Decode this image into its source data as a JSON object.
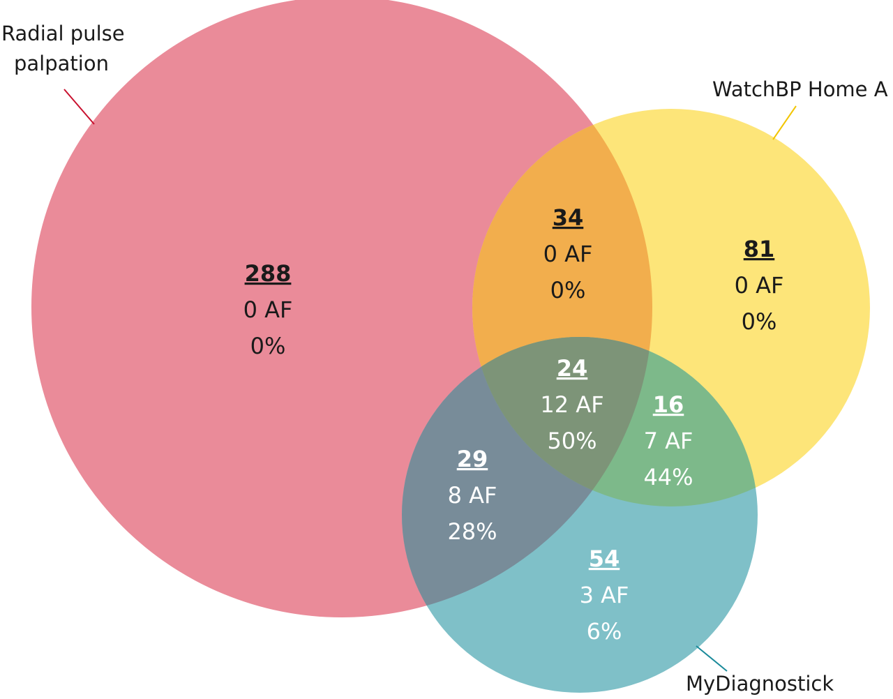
{
  "sets": [
    {
      "name": "Radial pulse palpation",
      "label_lines": [
        "Radial pulse",
        "palpation"
      ],
      "color": "#ea8b99",
      "leader_color": "#c8102e"
    },
    {
      "name": "WatchBP Home A",
      "label_lines": [
        "WatchBP Home A"
      ],
      "color": "#fde579",
      "leader_color": "#f2c500"
    },
    {
      "name": "MyDiagnostick",
      "label_lines": [
        "MyDiagnostick"
      ],
      "color": "#7fc0c8",
      "leader_color": "#1a8a9a"
    }
  ],
  "regions": [
    {
      "id": "radial-only",
      "sets": [
        "Radial pulse palpation"
      ],
      "count": "288",
      "af": "0 AF",
      "pct": "0%",
      "color": "#ea8b99",
      "text_color": "dark"
    },
    {
      "id": "watch-only",
      "sets": [
        "WatchBP Home A"
      ],
      "count": "81",
      "af": "0 AF",
      "pct": "0%",
      "color": "#fde579",
      "text_color": "dark"
    },
    {
      "id": "mydiag-only",
      "sets": [
        "MyDiagnostick"
      ],
      "count": "54",
      "af": "3 AF",
      "pct": "6%",
      "color": "#7fc0c8",
      "text_color": "light"
    },
    {
      "id": "radial-watch",
      "sets": [
        "Radial pulse palpation",
        "WatchBP Home A"
      ],
      "count": "34",
      "af": "0 AF",
      "pct": "0%",
      "color": "#f2ae4d",
      "text_color": "dark"
    },
    {
      "id": "radial-mydiag",
      "sets": [
        "Radial pulse palpation",
        "MyDiagnostick"
      ],
      "count": "29",
      "af": "8 AF",
      "pct": "28%",
      "color": "#788c99",
      "text_color": "light"
    },
    {
      "id": "watch-mydiag",
      "sets": [
        "WatchBP Home A",
        "MyDiagnostick"
      ],
      "count": "16",
      "af": "7 AF",
      "pct": "44%",
      "color": "#7db98a",
      "text_color": "light"
    },
    {
      "id": "all-three",
      "sets": [
        "Radial pulse palpation",
        "WatchBP Home A",
        "MyDiagnostick"
      ],
      "count": "24",
      "af": "12 AF",
      "pct": "50%",
      "color": "#7d9478",
      "text_color": "light"
    }
  ]
}
